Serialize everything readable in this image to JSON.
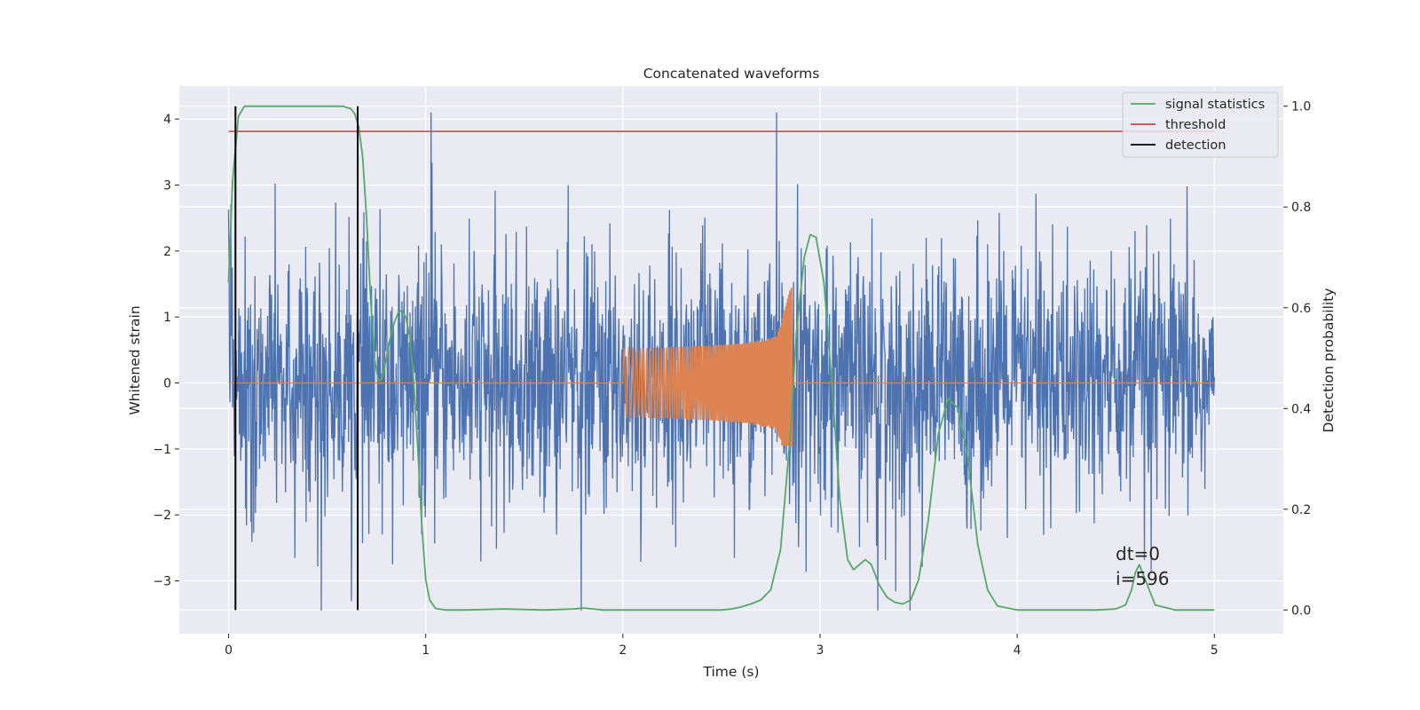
{
  "chart_data": {
    "type": "line",
    "title": "Concatenated waveforms",
    "xlabel": "Time (s)",
    "ylabel": "Whitened strain",
    "ylabel_right": "Detection probability",
    "xlim": [
      -0.25,
      5.35
    ],
    "ylim": [
      -3.8,
      4.5
    ],
    "ylim_right": [
      -0.047,
      1.04
    ],
    "xticks": [
      0,
      1,
      2,
      3,
      4,
      5
    ],
    "yticks": [
      -3,
      -2,
      -1,
      0,
      1,
      2,
      3,
      4
    ],
    "yticks_right": [
      0.0,
      0.2,
      0.4,
      0.6,
      0.8,
      1.0
    ],
    "xtick_labels": [
      "0",
      "1",
      "2",
      "3",
      "4",
      "5"
    ],
    "ytick_labels": [
      "−3",
      "−2",
      "−1",
      "0",
      "1",
      "2",
      "3",
      "4"
    ],
    "ytick_right_labels": [
      "0.0",
      "0.2",
      "0.4",
      "0.6",
      "0.8",
      "1.0"
    ],
    "grid": true,
    "legend_position": "top-right",
    "colors": {
      "strain": "#4c72b0",
      "injection": "#dd8452",
      "signal_statistics": "#55a868",
      "threshold": "#c44e52",
      "detection": "#000000",
      "plot_bg": "#eaeaf2",
      "grid": "#ffffff"
    },
    "series": [
      {
        "name": "signal statistics",
        "axis": "right",
        "x": [
          0.0,
          0.02,
          0.05,
          0.08,
          0.12,
          0.2,
          0.3,
          0.4,
          0.5,
          0.58,
          0.62,
          0.64,
          0.66,
          0.68,
          0.7,
          0.72,
          0.74,
          0.76,
          0.78,
          0.8,
          0.82,
          0.84,
          0.86,
          0.88,
          0.9,
          0.92,
          0.94,
          0.96,
          0.98,
          1.0,
          1.02,
          1.05,
          1.1,
          1.2,
          1.4,
          1.6,
          1.75,
          1.8,
          1.85,
          1.9,
          2.0,
          2.2,
          2.4,
          2.5,
          2.55,
          2.6,
          2.65,
          2.7,
          2.75,
          2.8,
          2.85,
          2.88,
          2.92,
          2.95,
          2.98,
          3.02,
          3.06,
          3.1,
          3.14,
          3.17,
          3.2,
          3.23,
          3.26,
          3.3,
          3.34,
          3.38,
          3.42,
          3.46,
          3.5,
          3.55,
          3.6,
          3.65,
          3.7,
          3.75,
          3.8,
          3.85,
          3.9,
          4.0,
          4.2,
          4.4,
          4.5,
          4.55,
          4.58,
          4.6,
          4.62,
          4.65,
          4.7,
          4.8,
          5.0
        ],
        "values": [
          0.65,
          0.85,
          0.98,
          1.0,
          1.0,
          1.0,
          1.0,
          1.0,
          1.0,
          1.0,
          0.995,
          0.985,
          0.96,
          0.9,
          0.78,
          0.62,
          0.5,
          0.455,
          0.46,
          0.5,
          0.54,
          0.57,
          0.59,
          0.595,
          0.58,
          0.54,
          0.45,
          0.32,
          0.17,
          0.06,
          0.02,
          0.003,
          0.0,
          0.0,
          0.002,
          0.0,
          0.002,
          0.004,
          0.002,
          0.0,
          0.0,
          0.0,
          0.0,
          0.0,
          0.002,
          0.006,
          0.012,
          0.02,
          0.04,
          0.12,
          0.35,
          0.55,
          0.7,
          0.745,
          0.74,
          0.65,
          0.45,
          0.22,
          0.1,
          0.08,
          0.09,
          0.1,
          0.09,
          0.05,
          0.025,
          0.015,
          0.012,
          0.02,
          0.06,
          0.18,
          0.35,
          0.42,
          0.4,
          0.3,
          0.13,
          0.04,
          0.008,
          0.0,
          0.0,
          0.0,
          0.002,
          0.01,
          0.04,
          0.075,
          0.09,
          0.06,
          0.01,
          0.0,
          0.0
        ]
      },
      {
        "name": "threshold",
        "axis": "right",
        "x": [
          0.0,
          5.0
        ],
        "values": [
          0.95,
          0.95
        ]
      },
      {
        "name": "detection",
        "axis": "right",
        "x": [
          0.035,
          0.655
        ],
        "values": [
          1.0,
          1.0
        ]
      }
    ],
    "annotations": [
      "dt=0",
      "i=596"
    ]
  }
}
